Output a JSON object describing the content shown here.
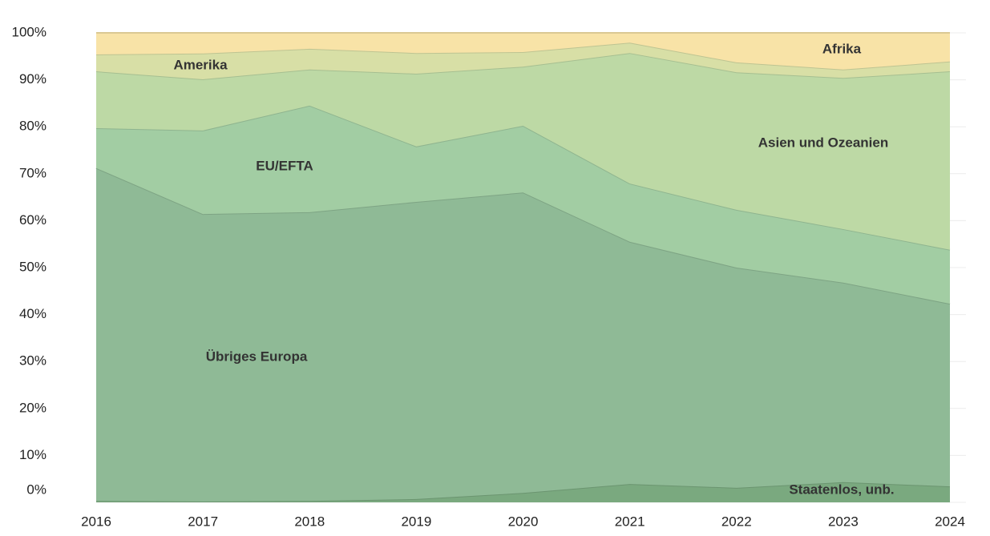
{
  "chart_data": {
    "type": "stacked_area",
    "categories": [
      "2016",
      "2017",
      "2018",
      "2019",
      "2020",
      "2021",
      "2022",
      "2023",
      "2024"
    ],
    "series": [
      {
        "name": "Staatenlos, unb.",
        "color": "#7aa97f",
        "values": [
          0.3,
          0.2,
          0.3,
          0.7,
          2.0,
          3.9,
          3.1,
          4.3,
          3.4
        ]
      },
      {
        "name": "Übriges Europa",
        "color": "#8fba96",
        "values": [
          70.9,
          61.2,
          61.5,
          63.3,
          64.0,
          51.6,
          46.9,
          42.5,
          38.9
        ]
      },
      {
        "name": "EU/EFTA",
        "color": "#a2cda3",
        "values": [
          8.5,
          17.8,
          22.7,
          11.8,
          14.2,
          12.4,
          12.3,
          11.4,
          11.5
        ]
      },
      {
        "name": "Asien und Ozeanien",
        "color": "#bdd9a5",
        "values": [
          12.1,
          10.9,
          7.7,
          15.5,
          12.6,
          27.8,
          29.3,
          32.2,
          38.0
        ]
      },
      {
        "name": "Amerika",
        "color": "#d8dfa6",
        "values": [
          3.6,
          5.5,
          4.4,
          4.4,
          3.1,
          2.2,
          2.1,
          1.8,
          2.1
        ]
      },
      {
        "name": "Afrika",
        "color": "#f8e3a7",
        "values": [
          4.6,
          4.4,
          3.4,
          4.3,
          4.1,
          2.1,
          6.3,
          7.8,
          6.1
        ]
      }
    ],
    "ylim": [
      0,
      100
    ],
    "yticks": [
      {
        "value": 0,
        "label": "0%"
      },
      {
        "value": 10,
        "label": "10%"
      },
      {
        "value": 20,
        "label": "20%"
      },
      {
        "value": 30,
        "label": "30%"
      },
      {
        "value": 40,
        "label": "40%"
      },
      {
        "value": 50,
        "label": "50%"
      },
      {
        "value": 60,
        "label": "60%"
      },
      {
        "value": 70,
        "label": "70%"
      },
      {
        "value": 80,
        "label": "80%"
      },
      {
        "value": 90,
        "label": "90%"
      },
      {
        "value": 100,
        "label": "100%"
      }
    ],
    "grid": true
  }
}
